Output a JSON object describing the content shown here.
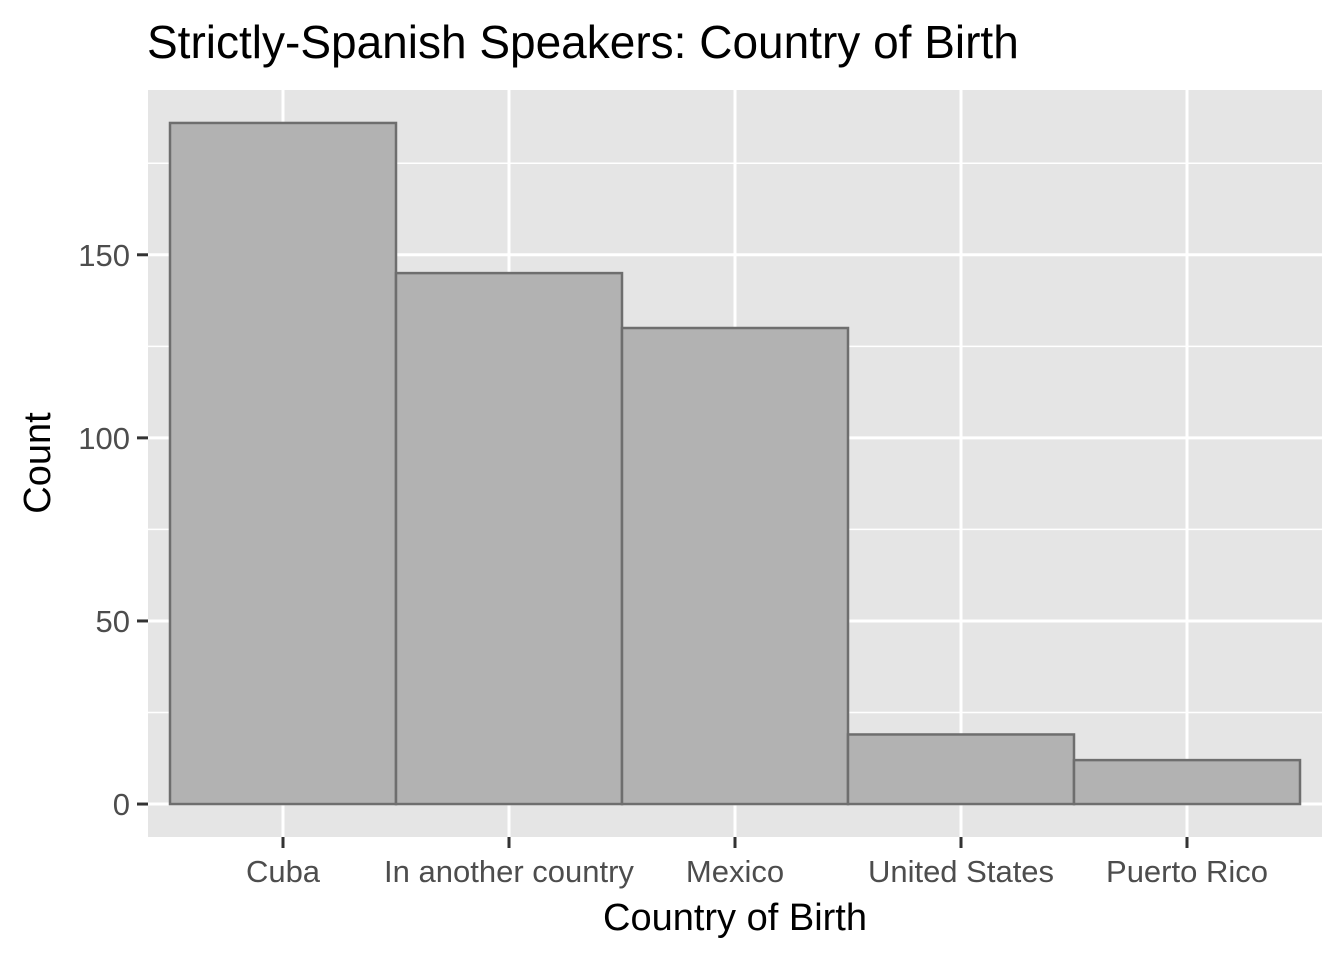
{
  "chart_data": {
    "type": "bar",
    "title": "Strictly-Spanish Speakers: Country of Birth",
    "xlabel": "Country of Birth",
    "ylabel": "Count",
    "categories": [
      "Cuba",
      "In another country",
      "Mexico",
      "United States",
      "Puerto Rico"
    ],
    "values": [
      186,
      145,
      130,
      19,
      12
    ],
    "ylim": [
      -9,
      195
    ],
    "yticks": [
      0,
      50,
      100,
      150
    ],
    "grid": true,
    "legend": "none",
    "colors": {
      "panel": "#e5e5e5",
      "grid": "#ffffff",
      "bar_fill": "#b2b2b2",
      "bar_stroke": "#6e6e6e",
      "tick": "#333333"
    }
  }
}
